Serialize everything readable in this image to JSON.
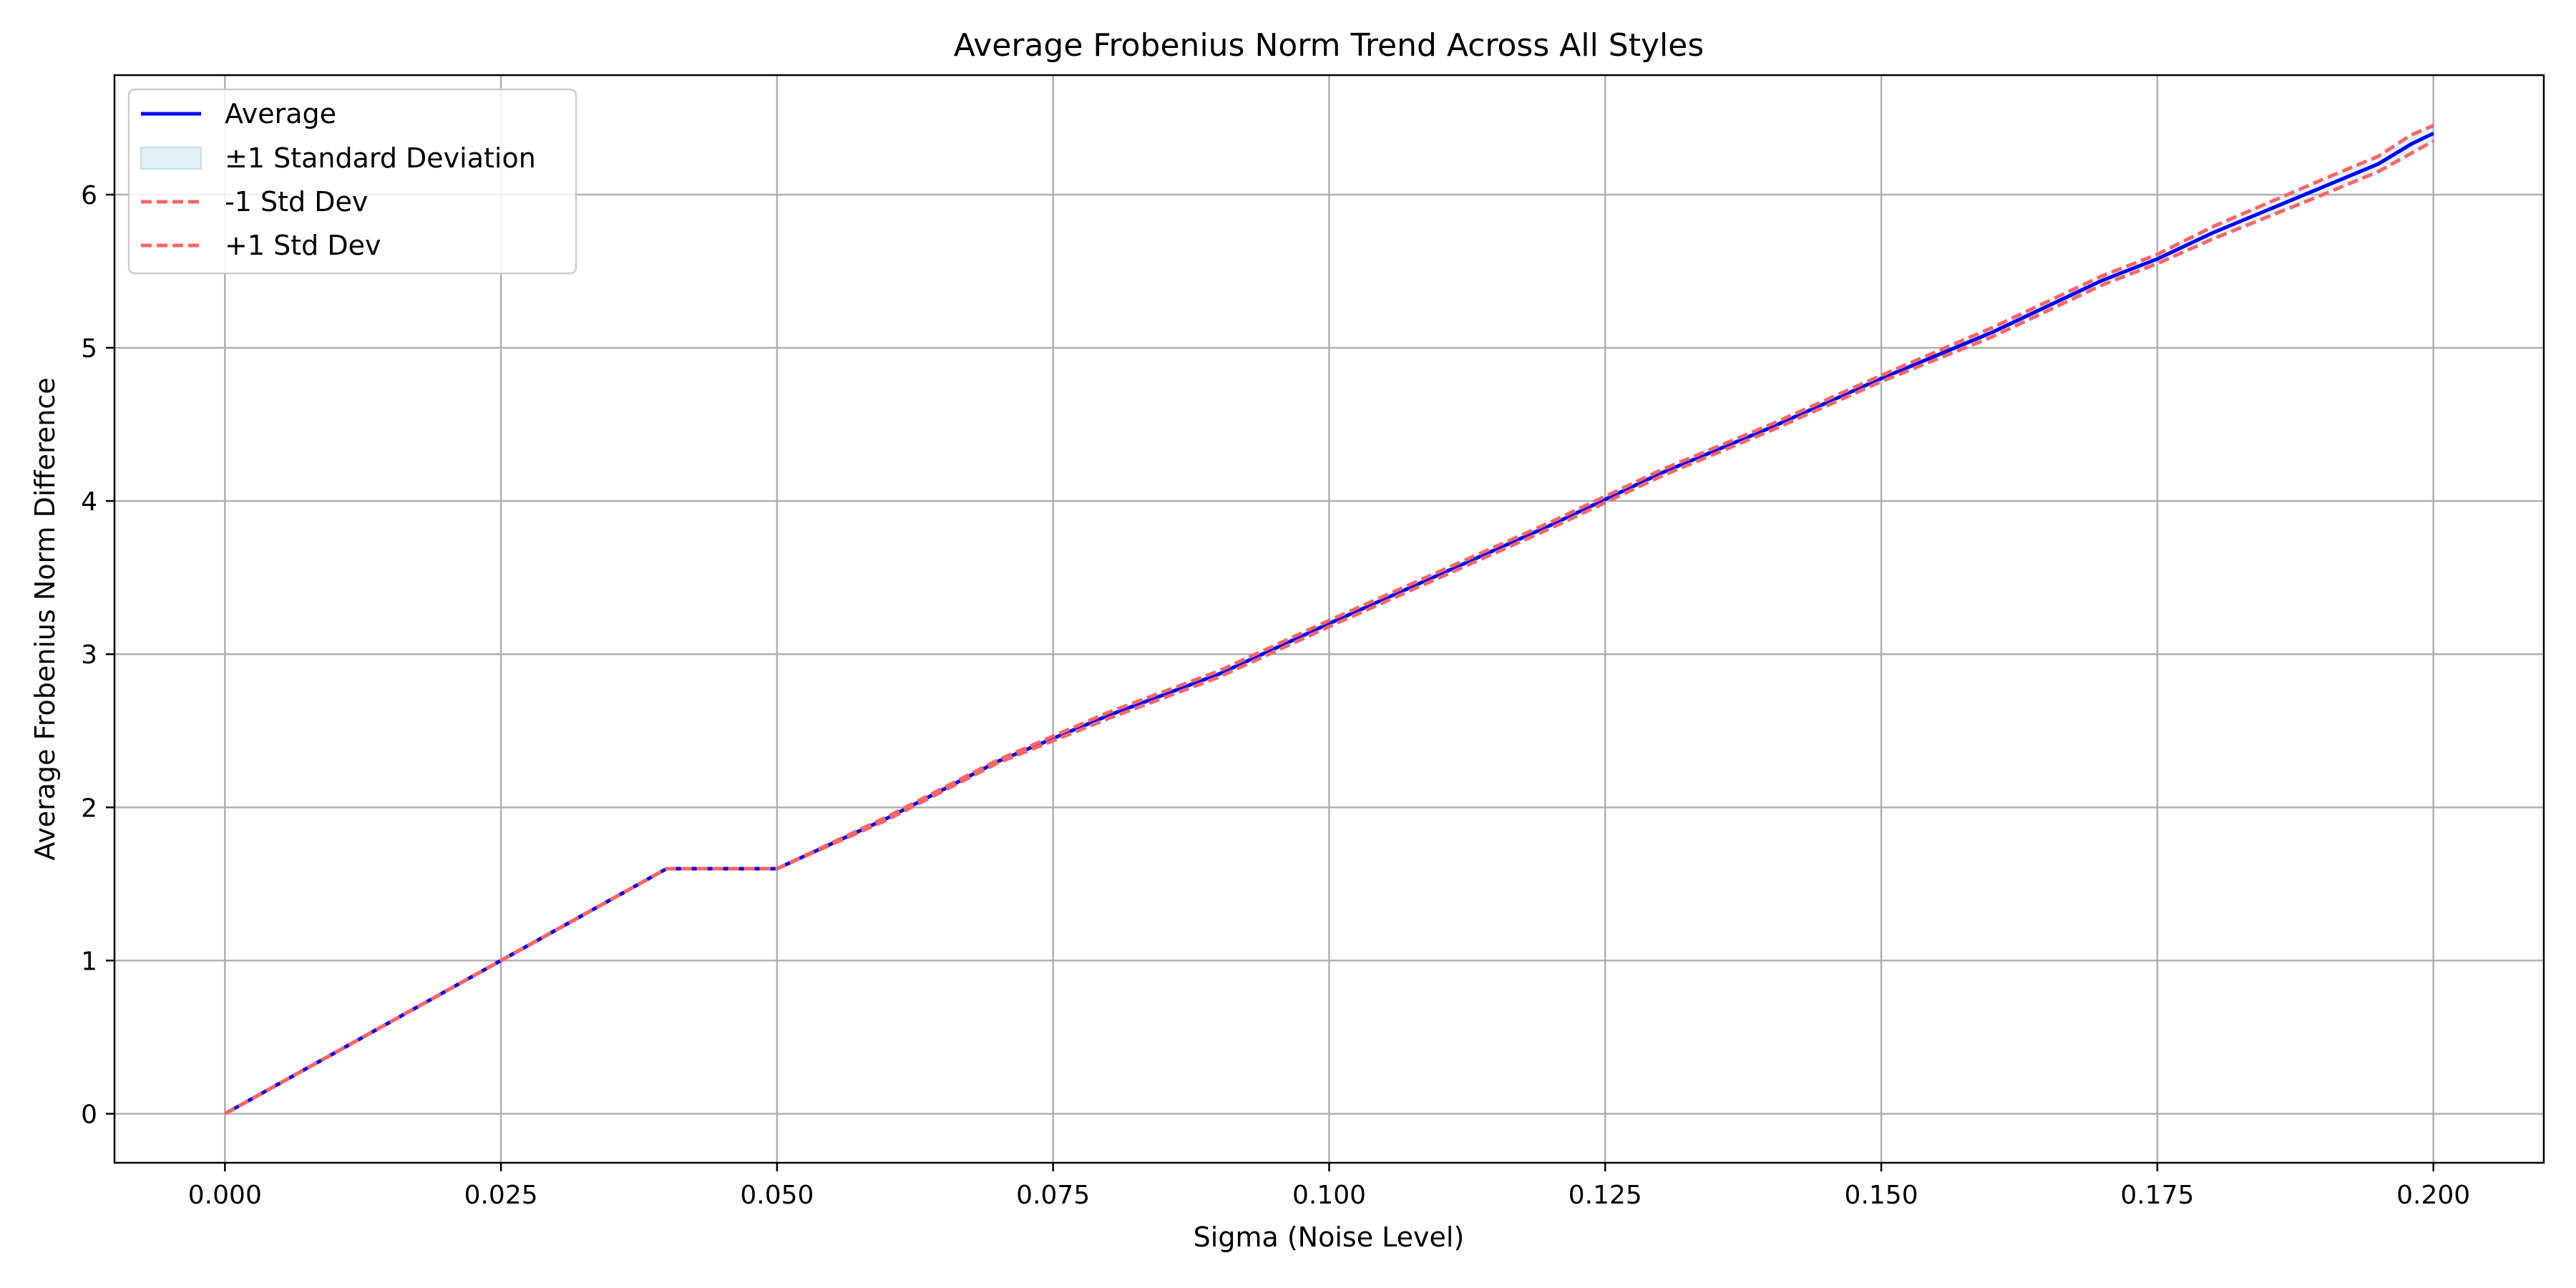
{
  "chart_data": {
    "type": "line",
    "title": "Average Frobenius Norm Trend Across All Styles",
    "xlabel": "Sigma (Noise Level)",
    "ylabel": "Average Frobenius Norm Difference",
    "xlim": [
      -0.01,
      0.21
    ],
    "ylim": [
      -0.32,
      6.78
    ],
    "x_ticks": [
      "0.000",
      "0.025",
      "0.050",
      "0.075",
      "0.100",
      "0.125",
      "0.150",
      "0.175",
      "0.200"
    ],
    "x_tick_values": [
      0,
      0.025,
      0.05,
      0.075,
      0.1,
      0.125,
      0.15,
      0.175,
      0.2
    ],
    "y_ticks": [
      "0",
      "1",
      "2",
      "3",
      "4",
      "5",
      "6"
    ],
    "y_tick_values": [
      0,
      1,
      2,
      3,
      4,
      5,
      6
    ],
    "grid": true,
    "legend_position": "top-left",
    "legend": [
      "Average",
      "±1 Standard Deviation",
      "-1 Std Dev",
      "+1 Std Dev"
    ],
    "colors": {
      "average": "#0000ff",
      "std_band": "#add8e6",
      "std_lines": "#ff6666",
      "grid": "#b0b0b0"
    },
    "x": [
      0,
      0.01,
      0.02,
      0.03,
      0.04,
      0.05,
      0.06,
      0.07,
      0.08,
      0.09,
      0.1,
      0.11,
      0.12,
      0.13,
      0.14,
      0.15,
      0.16,
      0.17,
      0.175,
      0.18,
      0.19,
      0.195,
      0.198,
      0.2
    ],
    "series": [
      {
        "name": "Average",
        "values": [
          0,
          0.4,
          0.8,
          1.2,
          1.6,
          1.6,
          1.93,
          2.3,
          2.6,
          2.87,
          3.2,
          3.52,
          3.84,
          4.18,
          4.48,
          4.8,
          5.1,
          5.44,
          5.58,
          5.75,
          6.05,
          6.2,
          6.33,
          6.4
        ]
      },
      {
        "name": "-1 Std Dev",
        "values": [
          0,
          0.4,
          0.8,
          1.2,
          1.6,
          1.6,
          1.92,
          2.29,
          2.58,
          2.85,
          3.18,
          3.5,
          3.82,
          4.16,
          4.46,
          4.78,
          5.07,
          5.41,
          5.55,
          5.71,
          6.0,
          6.15,
          6.27,
          6.35
        ]
      },
      {
        "name": "+1 Std Dev",
        "values": [
          0,
          0.4,
          0.8,
          1.2,
          1.6,
          1.6,
          1.94,
          2.31,
          2.62,
          2.89,
          3.22,
          3.54,
          3.86,
          4.2,
          4.5,
          4.82,
          5.13,
          5.47,
          5.61,
          5.79,
          6.1,
          6.25,
          6.39,
          6.45
        ]
      }
    ]
  }
}
